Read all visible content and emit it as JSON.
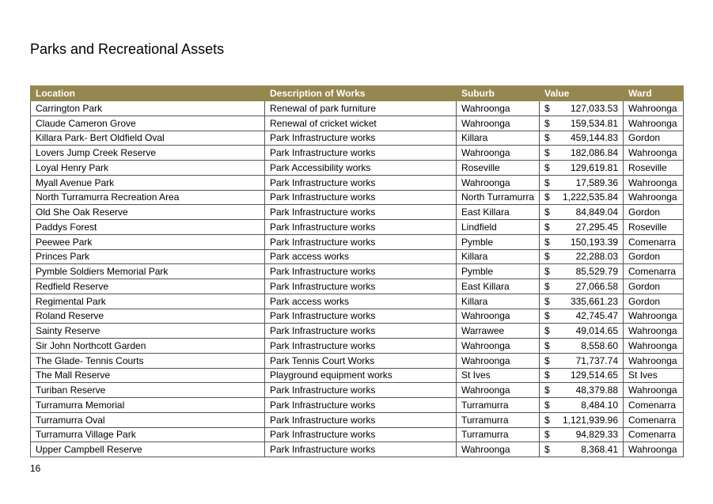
{
  "header": {
    "title": "Parks and Recreational Assets"
  },
  "table": {
    "columns": [
      "Location",
      "Description of Works",
      "Suburb",
      "Value",
      "Ward"
    ],
    "rows": [
      [
        "Carrington Park",
        "Renewal of park furniture",
        "Wahroonga",
        "$",
        "127,033.53",
        "Wahroonga"
      ],
      [
        "Claude Cameron Grove",
        "Renewal of cricket wicket",
        "Wahroonga",
        "$",
        "159,534.81",
        "Wahroonga"
      ],
      [
        "Killara Park- Bert Oldfield Oval",
        "Park Infrastructure works",
        "Killara",
        "$",
        "459,144.83",
        "Gordon"
      ],
      [
        "Lovers Jump Creek Reserve",
        "Park Infrastructure works",
        "Wahroonga",
        "$",
        "182,086.84",
        "Wahroonga"
      ],
      [
        "Loyal Henry Park",
        "Park Accessibility works",
        "Roseville",
        "$",
        "129,619.81",
        "Roseville"
      ],
      [
        "Myall Avenue Park",
        "Park Infrastructure works",
        "Wahroonga",
        "$",
        "17,589.36",
        "Wahroonga"
      ],
      [
        "North Turramurra Recreation Area",
        "Park Infrastructure works",
        "North Turramurra",
        "$",
        "1,222,535.84",
        "Wahroonga"
      ],
      [
        "Old She Oak Reserve",
        "Park Infrastructure works",
        "East Killara",
        "$",
        "84,849.04",
        "Gordon"
      ],
      [
        "Paddys Forest",
        "Park Infrastructure works",
        "Lindfield",
        "$",
        "27,295.45",
        "Roseville"
      ],
      [
        "Peewee Park",
        "Park Infrastructure works",
        "Pymble",
        "$",
        "150,193.39",
        "Comenarra"
      ],
      [
        "Princes Park",
        "Park access works",
        "Killara",
        "$",
        "22,288.03",
        "Gordon"
      ],
      [
        "Pymble Soldiers Memorial Park",
        "Park Infrastructure works",
        "Pymble",
        "$",
        "85,529.79",
        "Comenarra"
      ],
      [
        "Redfield Reserve",
        "Park Infrastructure works",
        "East Killara",
        "$",
        "27,066.58",
        "Gordon"
      ],
      [
        "Regimental Park",
        "Park access works",
        "Killara",
        "$",
        "335,661.23",
        "Gordon"
      ],
      [
        "Roland Reserve",
        "Park Infrastructure works",
        "Wahroonga",
        "$",
        "42,745.47",
        "Wahroonga"
      ],
      [
        "Sainty Reserve",
        "Park Infrastructure works",
        "Warrawee",
        "$",
        "49,014.65",
        "Wahroonga"
      ],
      [
        "Sir John Northcott Garden",
        "Park Infrastructure works",
        "Wahroonga",
        "$",
        "8,558.60",
        "Wahroonga"
      ],
      [
        "The Glade- Tennis Courts",
        "Park Tennis Court Works",
        "Wahroonga",
        "$",
        "71,737.74",
        "Wahroonga"
      ],
      [
        "The Mall Reserve",
        "Playground equipment works",
        "St Ives",
        "$",
        "129,514.65",
        "St Ives"
      ],
      [
        "Turiban Reserve",
        "Park Infrastructure works",
        "Wahroonga",
        "$",
        "48,379.88",
        "Wahroonga"
      ],
      [
        "Turramurra Memorial",
        "Park Infrastructure works",
        "Turramurra",
        "$",
        "8,484.10",
        "Comenarra"
      ],
      [
        "Turramurra Oval",
        "Park Infrastructure works",
        "Turramurra",
        "$",
        "1,121,939.96",
        "Comenarra"
      ],
      [
        "Turramurra Village Park",
        "Park Infrastructure works",
        "Turramurra",
        "$",
        "94,829.33",
        "Comenarra"
      ],
      [
        "Upper Campbell Reserve",
        "Park Infrastructure works",
        "Wahroonga",
        "$",
        "8,368.41",
        "Wahroonga"
      ]
    ]
  },
  "footer": {
    "page_number": "16"
  }
}
